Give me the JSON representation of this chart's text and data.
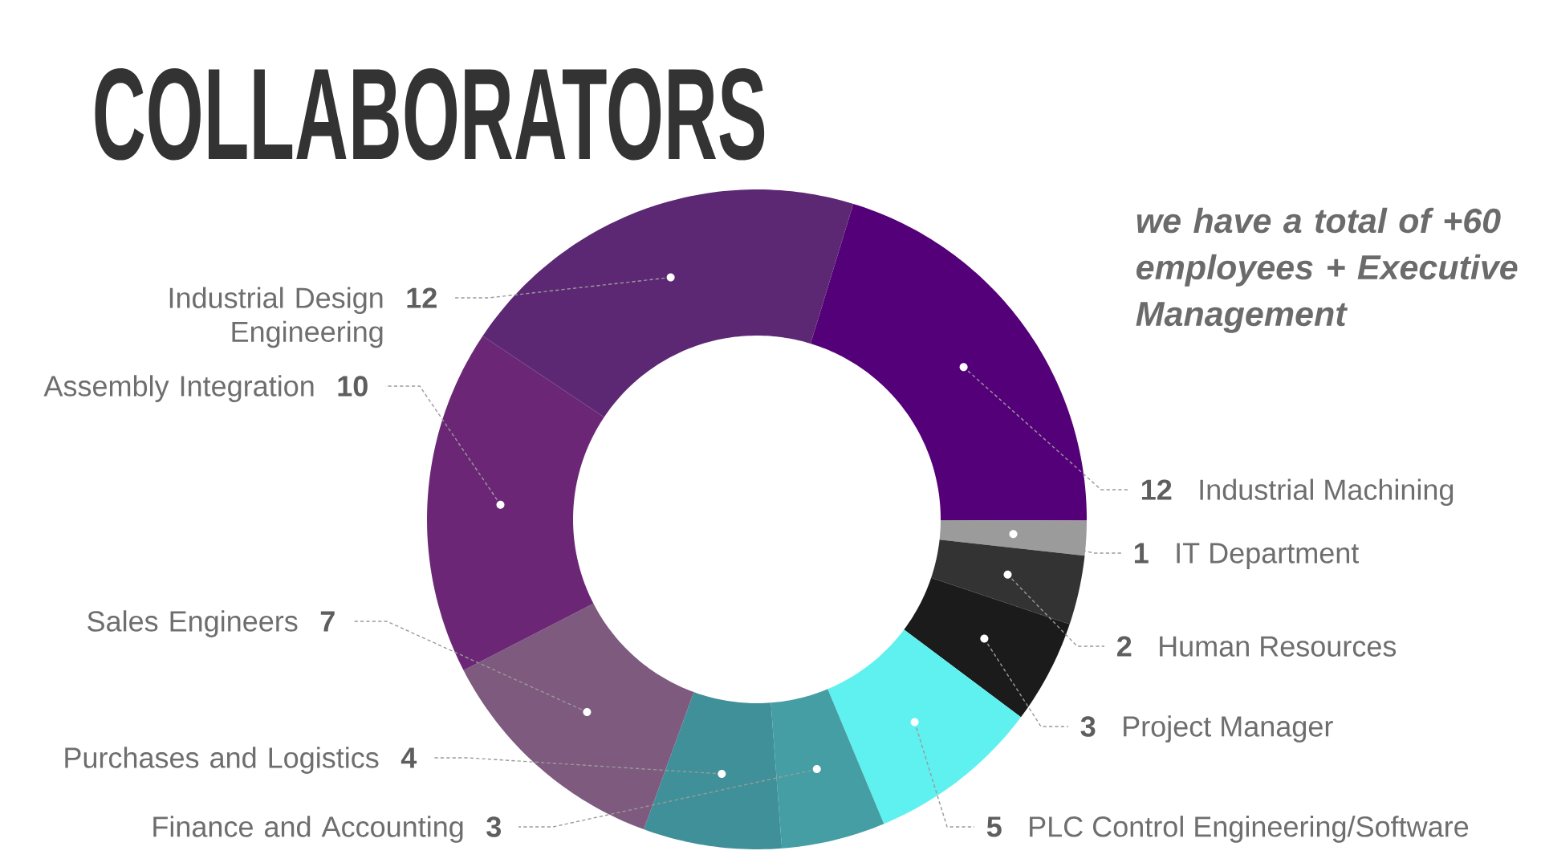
{
  "chart_data": {
    "type": "donut",
    "title": "COLLABORATORS",
    "annotations": [
      "we have a total of +60 employees + Executive Management"
    ],
    "categories": [
      "Industrial Machining",
      "IT Department",
      "Human Resources",
      "Project Manager",
      "PLC Control Engineering/Software",
      "Finance and Accounting",
      "Purchases and Logistics",
      "Sales Engineers",
      "Assembly Integration",
      "Industrial Design Engineering"
    ],
    "values": [
      12,
      1,
      2,
      3,
      5,
      3,
      4,
      7,
      10,
      12
    ],
    "colors": [
      "#540079",
      "#9b9b9b",
      "#333333",
      "#1b1b1b",
      "#5ff0f0",
      "#449ea4",
      "#3f9099",
      "#7d5a7e",
      "#6b2776",
      "#5c2873"
    ],
    "data_labels": true
  }
}
